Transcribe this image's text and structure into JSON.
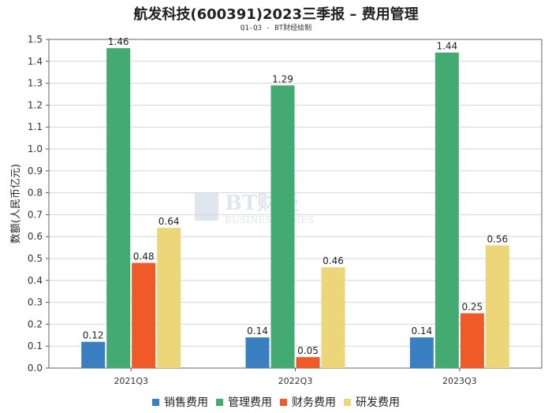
{
  "title": "航发科技(600391)2023三季报 – 费用管理",
  "subtitle": "Q1-Q3 - BT财经绘制",
  "watermark": {
    "brand": "BT财经",
    "sub": "BUSINESS TIMES"
  },
  "chart_data": {
    "type": "bar",
    "categories": [
      "2021Q3",
      "2022Q3",
      "2023Q3"
    ],
    "series": [
      {
        "name": "销售费用",
        "color": "#3a7fbf",
        "values": [
          0.12,
          0.14,
          0.14
        ]
      },
      {
        "name": "管理费用",
        "color": "#43aa72",
        "values": [
          1.46,
          1.29,
          1.44
        ]
      },
      {
        "name": "财务费用",
        "color": "#f05a28",
        "values": [
          0.48,
          0.05,
          0.25
        ]
      },
      {
        "name": "研发费用",
        "color": "#edd57a",
        "values": [
          0.64,
          0.46,
          0.56
        ]
      }
    ],
    "value_labels": [
      [
        "0.12",
        "1.46",
        "0.48",
        "0.64"
      ],
      [
        "0.14",
        "1.29",
        "0.05",
        "0.46"
      ],
      [
        "0.14",
        "1.44",
        "0.25",
        "0.56"
      ]
    ],
    "ylabel": "数额(人民币亿元)",
    "ylim": [
      0,
      1.5
    ],
    "yticks": [
      "0.0",
      "0.1",
      "0.2",
      "0.3",
      "0.4",
      "0.5",
      "0.6",
      "0.7",
      "0.8",
      "0.9",
      "1.0",
      "1.1",
      "1.2",
      "1.3",
      "1.4",
      "1.5"
    ],
    "grid": true,
    "legend_position": "bottom"
  }
}
